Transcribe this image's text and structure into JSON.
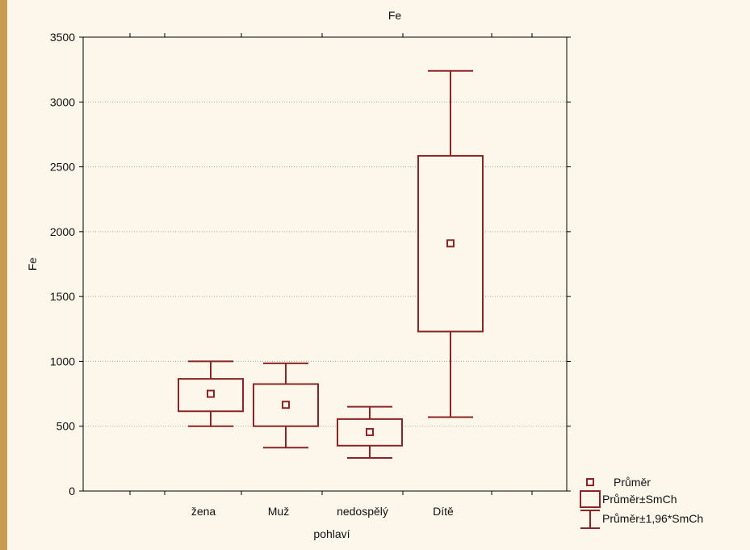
{
  "chart_data": {
    "type": "box",
    "title": "Fe",
    "xlabel": "pohlaví",
    "ylabel": "Fe",
    "ylim": [
      0,
      3500
    ],
    "yticks": [
      0,
      500,
      1000,
      1500,
      2000,
      2500,
      3000,
      3500
    ],
    "grid": true,
    "legend_position": "bottom-right",
    "categories": [
      "žena",
      "Muž",
      "nedospělý",
      "Dítě"
    ],
    "series": [
      {
        "name": "Průměr",
        "values": [
          750,
          665,
          455,
          1910
        ]
      },
      {
        "name": "Průměr±SmCh",
        "lower": [
          615,
          500,
          350,
          1230
        ],
        "upper": [
          865,
          825,
          555,
          2585
        ]
      },
      {
        "name": "Průměr±1,96*SmCh",
        "lower": [
          500,
          335,
          255,
          570
        ],
        "upper": [
          1000,
          985,
          650,
          3240
        ]
      }
    ],
    "colors": {
      "series": "#8b2525",
      "background": "#fcf7ea",
      "grid": "#a8a8a8"
    }
  }
}
